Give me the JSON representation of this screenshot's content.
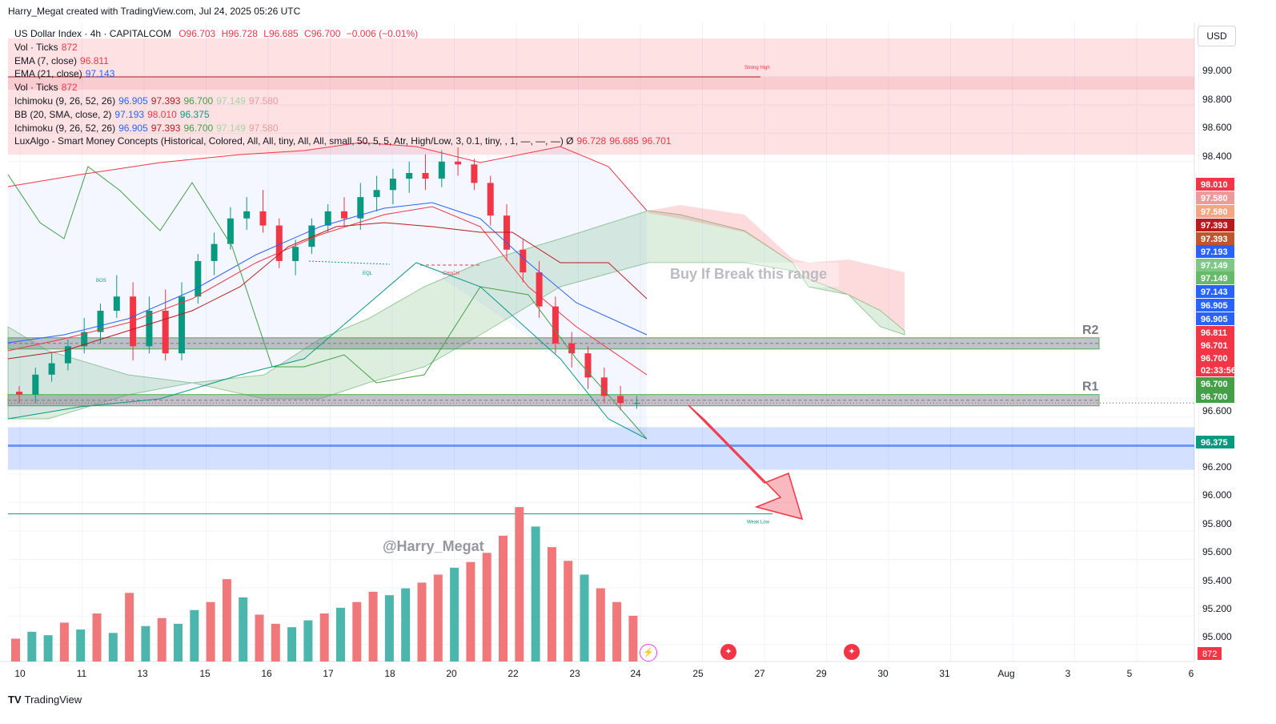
{
  "header": {
    "credit": "Harry_Megat created with TradingView.com, Jul 24, 2025 05:26 UTC"
  },
  "legend": {
    "symbol": {
      "name": "US Dollar Index · 4h · CAPITALCOM",
      "o": "O96.703",
      "h": "H96.728",
      "l": "L96.685",
      "c": "C96.700",
      "chg": "−0.006 (−0.01%)"
    },
    "rows": [
      {
        "label": "Vol · Ticks",
        "values": [
          {
            "t": "872",
            "color": "#f23645"
          }
        ]
      },
      {
        "label": "EMA (7, close)",
        "values": [
          {
            "t": "96.811",
            "color": "#f23645"
          }
        ]
      },
      {
        "label": "EMA (21, close)",
        "values": [
          {
            "t": "97.143",
            "color": "#2962ff"
          }
        ]
      },
      {
        "label": "Vol · Ticks",
        "values": [
          {
            "t": "872",
            "color": "#f23645"
          }
        ]
      },
      {
        "label": "Ichimoku (9, 26, 52, 26)",
        "values": [
          {
            "t": "96.905",
            "color": "#2962ff"
          },
          {
            "t": "97.393",
            "color": "#b71c1c"
          },
          {
            "t": "96.700",
            "color": "#43a047"
          },
          {
            "t": "97.149",
            "color": "#a5d6a7"
          },
          {
            "t": "97.580",
            "color": "#ef9a9a"
          }
        ]
      },
      {
        "label": "BB (20, SMA, close, 2)",
        "values": [
          {
            "t": "97.193",
            "color": "#2962ff"
          },
          {
            "t": "98.010",
            "color": "#f23645"
          },
          {
            "t": "96.375",
            "color": "#089981"
          }
        ]
      },
      {
        "label": "Ichimoku (9, 26, 52, 26)",
        "values": [
          {
            "t": "96.905",
            "color": "#2962ff"
          },
          {
            "t": "97.393",
            "color": "#b71c1c"
          },
          {
            "t": "96.700",
            "color": "#43a047"
          },
          {
            "t": "97.149",
            "color": "#a5d6a7"
          },
          {
            "t": "97.580",
            "color": "#ef9a9a"
          }
        ]
      },
      {
        "label": "LuxAlgo - Smart Money Concepts (Historical, Colored, All, All, tiny, All, All, small, 50, 5, 5, Atr, High/Low, 3, 0.1, tiny, , 1, —, —, —) Ø",
        "values": [
          {
            "t": "96.728",
            "color": "#f23645"
          },
          {
            "t": "96.685",
            "color": "#f23645"
          },
          {
            "t": "96.701",
            "color": "#f23645"
          }
        ]
      }
    ]
  },
  "currency": "USD",
  "chart_data": {
    "type": "candlestick",
    "y_axis": {
      "min": 94.88,
      "max": 99.38,
      "ticks": [
        "99.000",
        "98.800",
        "98.600",
        "98.400",
        "96.600",
        "96.200",
        "96.000",
        "95.800",
        "95.600",
        "95.400",
        "95.200",
        "95.000"
      ]
    },
    "x_axis": {
      "labels": [
        "10",
        "11",
        "13",
        "15",
        "16",
        "17",
        "18",
        "20",
        "22",
        "23",
        "24",
        "25",
        "27",
        "29",
        "30",
        "31",
        "Aug",
        "3",
        "5",
        "6"
      ]
    },
    "candles": [
      [
        96.78,
        96.82,
        96.7,
        96.76
      ],
      [
        96.76,
        96.95,
        96.7,
        96.9
      ],
      [
        96.9,
        97.05,
        96.85,
        96.98
      ],
      [
        96.98,
        97.15,
        96.93,
        97.1
      ],
      [
        97.1,
        97.3,
        97.05,
        97.2
      ],
      [
        97.2,
        97.4,
        97.12,
        97.35
      ],
      [
        97.35,
        97.6,
        97.3,
        97.45
      ],
      [
        97.45,
        97.55,
        97.0,
        97.1
      ],
      [
        97.1,
        97.45,
        97.05,
        97.35
      ],
      [
        97.35,
        97.5,
        97.0,
        97.05
      ],
      [
        97.05,
        97.55,
        97.0,
        97.45
      ],
      [
        97.45,
        97.75,
        97.4,
        97.7
      ],
      [
        97.7,
        97.9,
        97.6,
        97.82
      ],
      [
        97.82,
        98.08,
        97.78,
        98.0
      ],
      [
        98.0,
        98.15,
        97.92,
        98.05
      ],
      [
        98.05,
        98.2,
        97.9,
        97.95
      ],
      [
        97.95,
        98.0,
        97.65,
        97.7
      ],
      [
        97.7,
        97.85,
        97.6,
        97.8
      ],
      [
        97.8,
        98.0,
        97.75,
        97.95
      ],
      [
        97.95,
        98.1,
        97.9,
        98.05
      ],
      [
        98.05,
        98.15,
        97.95,
        98.0
      ],
      [
        98.0,
        98.25,
        97.92,
        98.15
      ],
      [
        98.15,
        98.3,
        98.05,
        98.2
      ],
      [
        98.2,
        98.35,
        98.1,
        98.28
      ],
      [
        98.28,
        98.4,
        98.18,
        98.32
      ],
      [
        98.32,
        98.45,
        98.2,
        98.28
      ],
      [
        98.28,
        98.48,
        98.22,
        98.4
      ],
      [
        98.4,
        98.5,
        98.3,
        98.38
      ],
      [
        98.38,
        98.42,
        98.2,
        98.25
      ],
      [
        98.25,
        98.3,
        97.95,
        98.02
      ],
      [
        98.02,
        98.1,
        97.7,
        97.78
      ],
      [
        97.78,
        97.85,
        97.55,
        97.62
      ],
      [
        97.62,
        97.7,
        97.3,
        97.38
      ],
      [
        97.38,
        97.45,
        97.05,
        97.12
      ],
      [
        97.12,
        97.2,
        96.95,
        97.05
      ],
      [
        97.05,
        97.1,
        96.8,
        96.88
      ],
      [
        96.88,
        96.95,
        96.7,
        96.75
      ],
      [
        96.75,
        96.82,
        96.65,
        96.7
      ],
      [
        96.7,
        96.75,
        96.66,
        96.7
      ]
    ],
    "volumes": [
      {
        "v": 200,
        "up": false
      },
      {
        "v": 260,
        "up": true
      },
      {
        "v": 230,
        "up": true
      },
      {
        "v": 340,
        "up": false
      },
      {
        "v": 280,
        "up": true
      },
      {
        "v": 420,
        "up": false
      },
      {
        "v": 250,
        "up": true
      },
      {
        "v": 600,
        "up": false
      },
      {
        "v": 310,
        "up": true
      },
      {
        "v": 380,
        "up": false
      },
      {
        "v": 330,
        "up": true
      },
      {
        "v": 450,
        "up": true
      },
      {
        "v": 520,
        "up": false
      },
      {
        "v": 720,
        "up": false
      },
      {
        "v": 560,
        "up": true
      },
      {
        "v": 410,
        "up": false
      },
      {
        "v": 330,
        "up": false
      },
      {
        "v": 300,
        "up": true
      },
      {
        "v": 360,
        "up": true
      },
      {
        "v": 420,
        "up": false
      },
      {
        "v": 470,
        "up": true
      },
      {
        "v": 520,
        "up": false
      },
      {
        "v": 610,
        "up": false
      },
      {
        "v": 580,
        "up": true
      },
      {
        "v": 640,
        "up": true
      },
      {
        "v": 690,
        "up": false
      },
      {
        "v": 760,
        "up": false
      },
      {
        "v": 820,
        "up": true
      },
      {
        "v": 870,
        "up": false
      },
      {
        "v": 950,
        "up": false
      },
      {
        "v": 1100,
        "up": false
      },
      {
        "v": 1350,
        "up": false
      },
      {
        "v": 1180,
        "up": true
      },
      {
        "v": 1000,
        "up": false
      },
      {
        "v": 880,
        "up": false
      },
      {
        "v": 760,
        "up": true
      },
      {
        "v": 640,
        "up": false
      },
      {
        "v": 520,
        "up": false
      },
      {
        "v": 400,
        "up": false
      }
    ],
    "levels": {
      "R2": {
        "label": "R2",
        "value": 97.12
      },
      "R1": {
        "label": "R1",
        "value": 96.72
      },
      "blue_zone": {
        "top": 96.53,
        "bottom": 96.23,
        "line": 96.4
      },
      "weak_low": {
        "label": "Weak Low",
        "value": 95.92
      },
      "strong_high": {
        "label": "Strong High",
        "value": 99.02
      },
      "bos": "BOS",
      "eql": "EQL",
      "choch": "CHoCH"
    },
    "annotations": {
      "watermark": "@Harry_Megat",
      "range_text": "Buy If Break this range"
    },
    "price_labels": [
      {
        "t": "98.010",
        "bg": "#f23645"
      },
      {
        "t": "97.580",
        "bg": "#ef9a9a"
      },
      {
        "t": "97.580",
        "bg": "#f4a582"
      },
      {
        "t": "97.393",
        "bg": "#b71c1c"
      },
      {
        "t": "97.393",
        "bg": "#c0562f"
      },
      {
        "t": "97.193",
        "bg": "#2962ff"
      },
      {
        "t": "97.149",
        "bg": "#81c784"
      },
      {
        "t": "97.149",
        "bg": "#66bb6a"
      },
      {
        "t": "97.143",
        "bg": "#2962ff"
      },
      {
        "t": "96.905",
        "bg": "#2962ff"
      },
      {
        "t": "96.905",
        "bg": "#2962ff"
      },
      {
        "t": "96.811",
        "bg": "#f23645"
      },
      {
        "t": "96.701",
        "bg": "#f23645"
      },
      {
        "t": "96.700",
        "bg": "#f23645"
      },
      {
        "t": "02:33:56",
        "bg": "#f23645"
      },
      {
        "t": "96.700",
        "bg": "#43a047"
      },
      {
        "t": "96.700",
        "bg": "#43a047"
      },
      {
        "t": "96.375",
        "bg": "#089981"
      }
    ],
    "volume_label": "872"
  },
  "footer": {
    "brand": "TradingView"
  }
}
